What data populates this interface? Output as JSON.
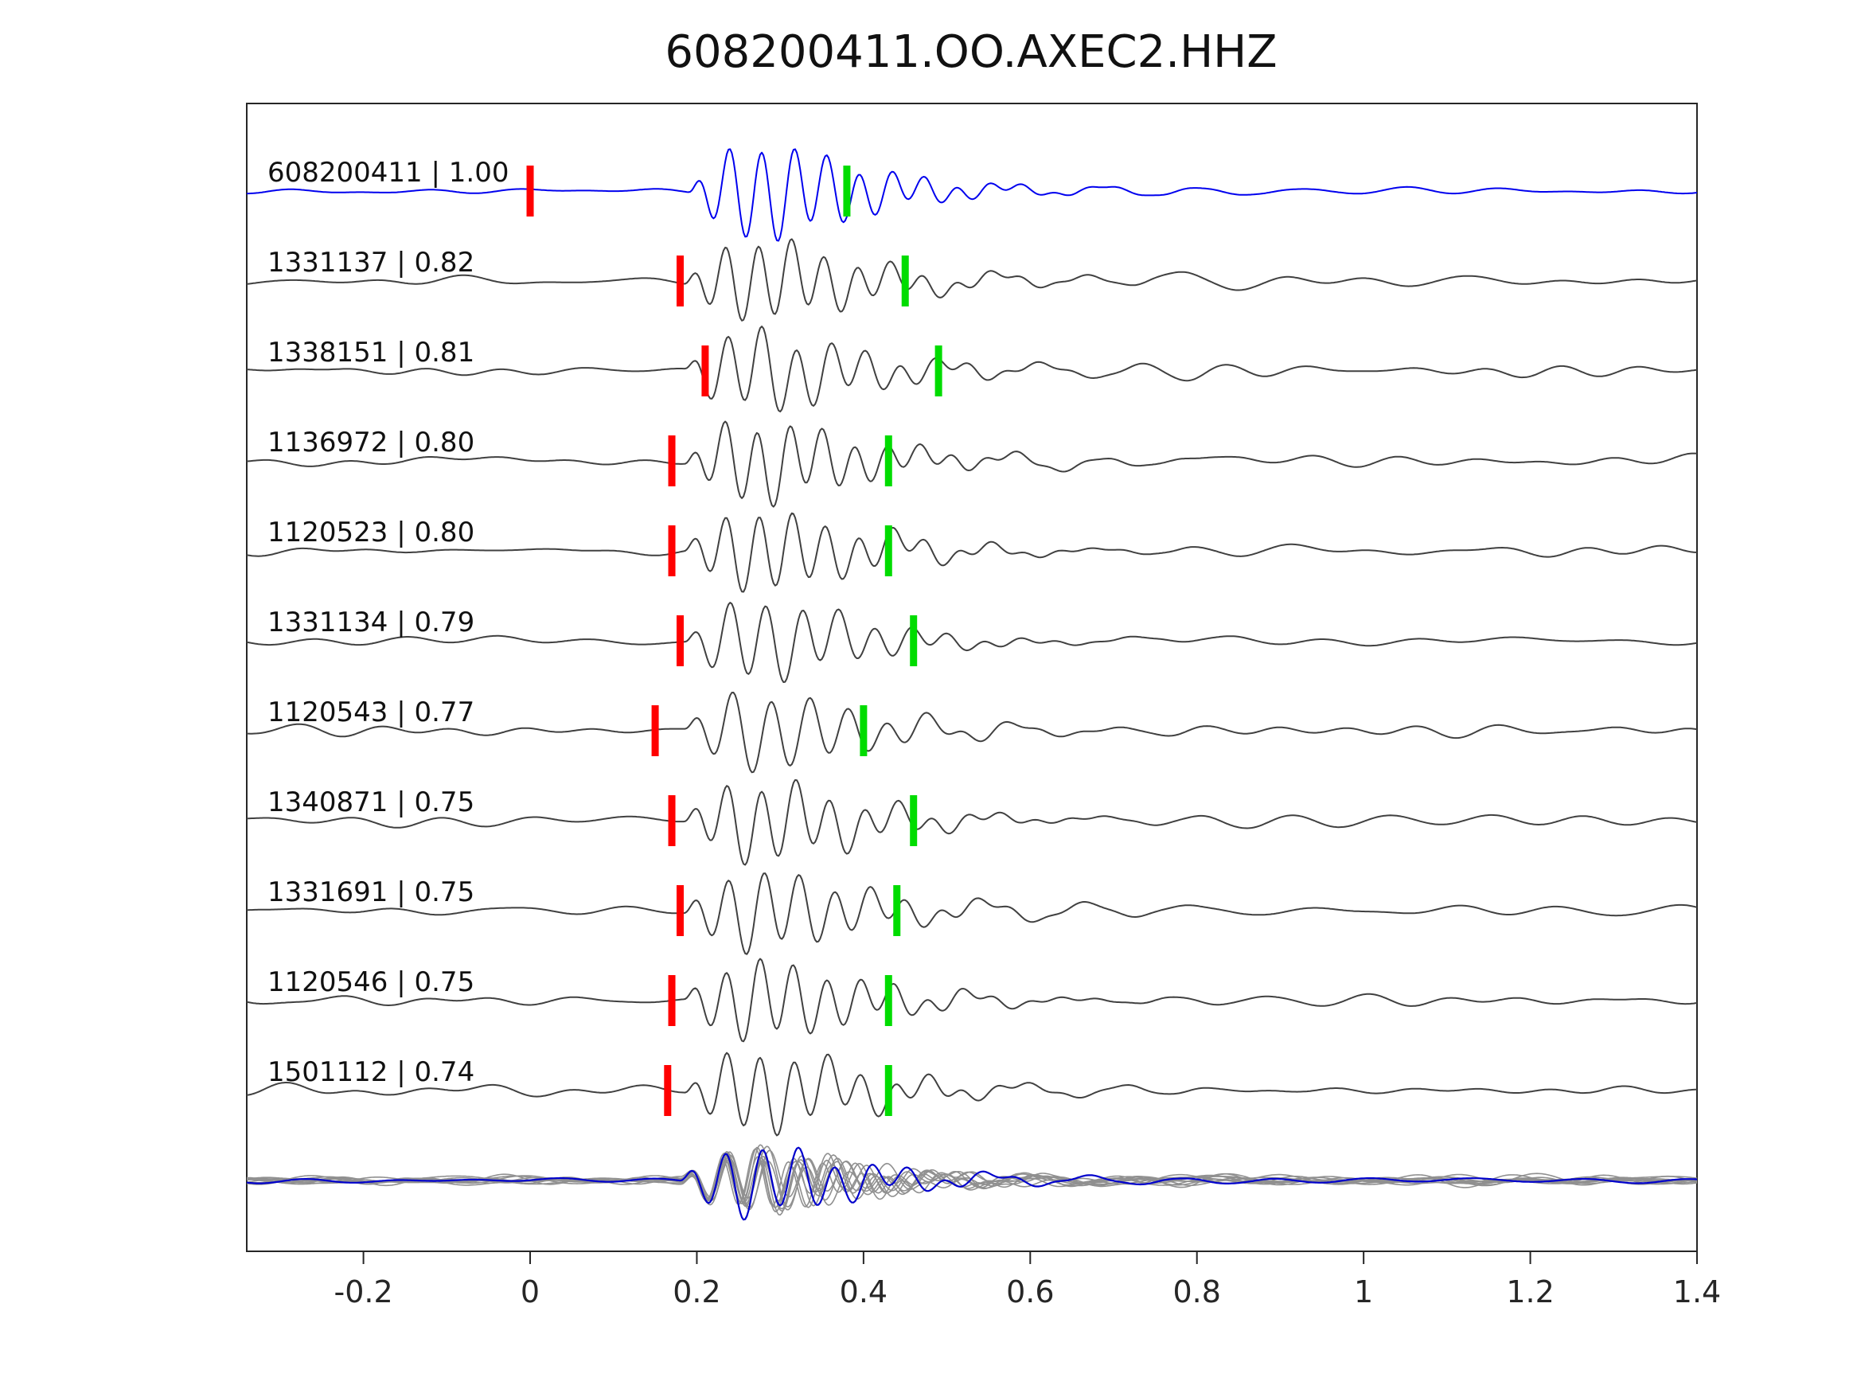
{
  "chart_data": {
    "type": "line",
    "title": "608200411.OO.AXEC2.HHZ",
    "xlabel": "",
    "ylabel": "",
    "xlim": [
      -0.34,
      1.4
    ],
    "grid": false,
    "legend": "none",
    "xticks": {
      "values": [
        -0.2,
        0,
        0.2,
        0.4,
        0.6,
        0.8,
        1,
        1.2,
        1.4
      ],
      "labels": [
        "-0.2",
        "0",
        "0.2",
        "0.4",
        "0.6",
        "0.8",
        "1",
        "1.2",
        "1.4"
      ]
    },
    "colors": {
      "template_trace": "#0000ee",
      "detection_trace": "#404040",
      "pick_red": "#ff0000",
      "pick_green": "#00dc00",
      "overlay_gray": "#909090",
      "overlay_blue": "#0000cc",
      "axis": "#262626"
    },
    "traces": [
      {
        "label": "608200411 | 1.00",
        "id": "608200411",
        "correlation": 1.0,
        "style": "template",
        "red_pick": 0.0,
        "green_pick": 0.38
      },
      {
        "label": "1331137 | 0.82",
        "id": "1331137",
        "correlation": 0.82,
        "style": "detection",
        "red_pick": 0.18,
        "green_pick": 0.45
      },
      {
        "label": "1338151 | 0.81",
        "id": "1338151",
        "correlation": 0.81,
        "style": "detection",
        "red_pick": 0.21,
        "green_pick": 0.49
      },
      {
        "label": "1136972 | 0.80",
        "id": "1136972",
        "correlation": 0.8,
        "style": "detection",
        "red_pick": 0.17,
        "green_pick": 0.43
      },
      {
        "label": "1120523 | 0.80",
        "id": "1120523",
        "correlation": 0.8,
        "style": "detection",
        "red_pick": 0.17,
        "green_pick": 0.43
      },
      {
        "label": "1331134 | 0.79",
        "id": "1331134",
        "correlation": 0.79,
        "style": "detection",
        "red_pick": 0.18,
        "green_pick": 0.46
      },
      {
        "label": "1120543 | 0.77",
        "id": "1120543",
        "correlation": 0.77,
        "style": "detection",
        "red_pick": 0.15,
        "green_pick": 0.4
      },
      {
        "label": "1340871 | 0.75",
        "id": "1340871",
        "correlation": 0.75,
        "style": "detection",
        "red_pick": 0.17,
        "green_pick": 0.46
      },
      {
        "label": "1331691 | 0.75",
        "id": "1331691",
        "correlation": 0.75,
        "style": "detection",
        "red_pick": 0.18,
        "green_pick": 0.44
      },
      {
        "label": "1120546 | 0.75",
        "id": "1120546",
        "correlation": 0.75,
        "style": "detection",
        "red_pick": 0.17,
        "green_pick": 0.43
      },
      {
        "label": "1501112 | 0.74",
        "id": "1501112",
        "correlation": 0.74,
        "style": "detection",
        "red_pick": 0.165,
        "green_pick": 0.43
      }
    ],
    "overlay": {
      "description": "all detection waveforms overlaid with template waveform, aligned on onset",
      "gray_count": 10
    }
  }
}
